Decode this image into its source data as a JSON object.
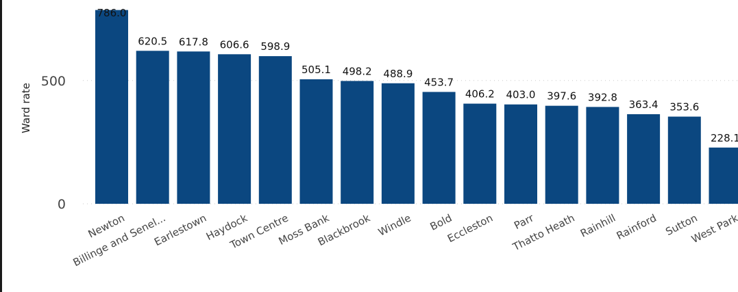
{
  "chart_data": {
    "type": "bar",
    "ylabel": "Ward rate",
    "xlabel": "",
    "categories": [
      "Newton",
      "Billinge and Senel...",
      "Earlestown",
      "Haydock",
      "Town Centre",
      "Moss Bank",
      "Blackbrook",
      "Windle",
      "Bold",
      "Eccleston",
      "Parr",
      "Thatto Heath",
      "Rainhill",
      "Rainford",
      "Sutton",
      "West Park"
    ],
    "values": [
      786.0,
      620.5,
      617.8,
      606.6,
      598.9,
      505.1,
      498.2,
      488.9,
      453.7,
      406.2,
      403.0,
      397.6,
      392.8,
      363.4,
      353.6,
      228.1
    ],
    "data_labels": [
      "786.0",
      "620.5",
      "617.8",
      "606.6",
      "598.9",
      "505.1",
      "498.2",
      "488.9",
      "453.7",
      "406.2",
      "403.0",
      "397.6",
      "392.8",
      "363.4",
      "353.6",
      "228.1"
    ],
    "yticks": [
      0,
      500
    ],
    "ytick_labels": [
      "0",
      "500"
    ],
    "ylim": [
      0,
      800
    ],
    "grid": "dotted-horizontal",
    "bar_color": "#0b4780"
  }
}
